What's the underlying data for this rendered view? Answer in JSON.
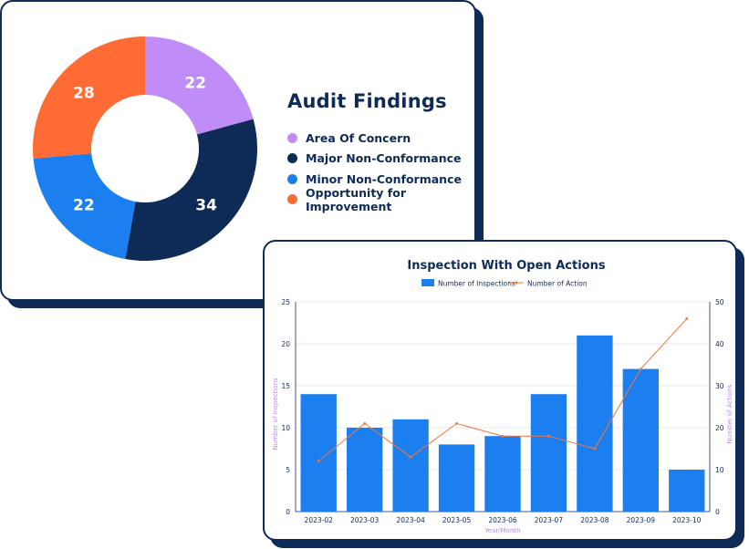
{
  "chart_data": [
    {
      "type": "pie",
      "variant": "donut",
      "title": "Audit Findings",
      "categories": [
        "Area Of Concern",
        "Major Non-Conformance",
        "Minor Non-Conformance",
        "Opportunity for Improvement"
      ],
      "values": [
        22,
        34,
        22,
        28
      ],
      "colors": [
        "#c08cf7",
        "#0e2a57",
        "#1b7ff0",
        "#ff6b35"
      ],
      "legend_position": "right"
    },
    {
      "type": "bar",
      "title": "Inspection With Open Actions",
      "categories": [
        "2023-02",
        "2023-03",
        "2023-04",
        "2023-05",
        "2023-06",
        "2023-07",
        "2023-08",
        "2023-09",
        "2023-10"
      ],
      "series": [
        {
          "name": "Number of Inspections",
          "type": "bar",
          "axis": "left",
          "color": "#1b7ff0",
          "values": [
            14,
            10,
            11,
            8,
            9,
            14,
            21,
            17,
            5
          ]
        },
        {
          "name": "Number of Action",
          "type": "line",
          "axis": "right",
          "color": "#f4743b",
          "values": [
            12,
            21,
            13,
            21,
            18,
            18,
            15,
            34,
            46
          ]
        }
      ],
      "xlabel": "Year/Month",
      "ylabel": "Number of Inspections",
      "y2label": "Number of Actions",
      "ylim": [
        0,
        25
      ],
      "yticks": [
        0,
        5,
        10,
        15,
        20,
        25
      ],
      "y2lim": [
        0,
        50
      ],
      "y2ticks": [
        0,
        10,
        20,
        30,
        40,
        50
      ],
      "grid": true,
      "legend_position": "top"
    }
  ]
}
